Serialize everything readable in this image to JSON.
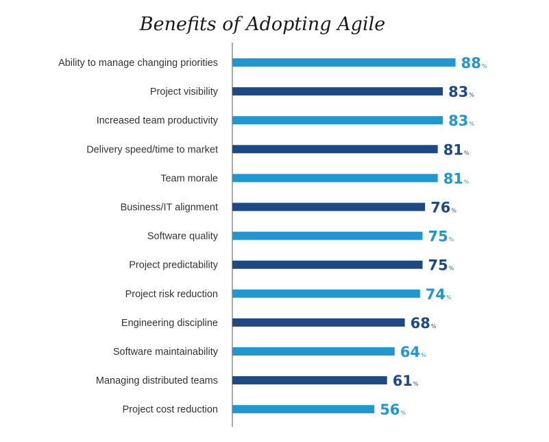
{
  "chart_data": {
    "type": "bar",
    "orientation": "horizontal",
    "title": "Benefits of Adopting Agile",
    "xlabel": "",
    "ylabel": "",
    "xlim": [
      0,
      100
    ],
    "value_suffix": "%",
    "categories": [
      "Ability to manage changing priorities",
      "Project visibility",
      "Increased team productivity",
      "Delivery speed/time to market",
      "Team morale",
      "Business/IT alignment",
      "Software quality",
      "Project predictability",
      "Project risk reduction",
      "Engineering discipline",
      "Software maintainability",
      "Managing distributed teams",
      "Project cost reduction"
    ],
    "values": [
      88,
      83,
      83,
      81,
      81,
      76,
      75,
      75,
      74,
      68,
      64,
      61,
      56
    ],
    "colors": {
      "light": "#1f97d1",
      "dark": "#1d4a85",
      "axis": "#555555"
    },
    "bar_color_pattern": [
      "light",
      "dark"
    ]
  }
}
